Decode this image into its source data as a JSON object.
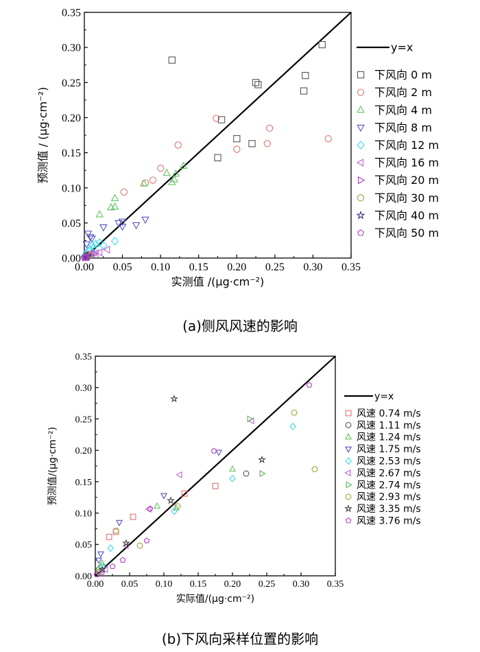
{
  "chart_data": [
    {
      "type": "scatter",
      "caption": "(a)侧风风速的影响",
      "xlabel": "实测值 /(μg·cm⁻²)",
      "ylabel": "预测值 / (μg·cm⁻²)",
      "xlim": [
        0,
        0.35
      ],
      "ylim": [
        0,
        0.35
      ],
      "xticks": [
        "0.00",
        "0.05",
        "0.10",
        "0.15",
        "0.20",
        "0.25",
        "0.30",
        "0.35"
      ],
      "yticks": [
        "0.00",
        "0.05",
        "0.10",
        "0.15",
        "0.20",
        "0.25",
        "0.30",
        "0.35"
      ],
      "reference_line": {
        "name": "y=x",
        "color": "#000000"
      },
      "legend_position": "right",
      "series": [
        {
          "name": "下风向 0 m",
          "marker": "square",
          "color": "#555555",
          "points": [
            [
              0.115,
              0.282
            ],
            [
              0.225,
              0.25
            ],
            [
              0.228,
              0.247
            ],
            [
              0.312,
              0.304
            ],
            [
              0.29,
              0.26
            ],
            [
              0.288,
              0.238
            ],
            [
              0.18,
              0.197
            ],
            [
              0.2,
              0.17
            ],
            [
              0.22,
              0.163
            ],
            [
              0.175,
              0.143
            ]
          ]
        },
        {
          "name": "下风向 2 m",
          "marker": "circle",
          "color": "#e07070",
          "points": [
            [
              0.173,
              0.199
            ],
            [
              0.243,
              0.185
            ],
            [
              0.32,
              0.17
            ],
            [
              0.24,
              0.163
            ],
            [
              0.2,
              0.155
            ],
            [
              0.123,
              0.161
            ],
            [
              0.1,
              0.128
            ],
            [
              0.09,
              0.111
            ],
            [
              0.08,
              0.107
            ],
            [
              0.052,
              0.094
            ]
          ]
        },
        {
          "name": "下风向 4 m",
          "marker": "triangle-up",
          "color": "#60c060",
          "points": [
            [
              0.13,
              0.131
            ],
            [
              0.118,
              0.112
            ],
            [
              0.12,
              0.12
            ],
            [
              0.108,
              0.121
            ],
            [
              0.115,
              0.108
            ],
            [
              0.078,
              0.106
            ],
            [
              0.04,
              0.085
            ],
            [
              0.035,
              0.072
            ],
            [
              0.04,
              0.073
            ],
            [
              0.02,
              0.062
            ]
          ]
        },
        {
          "name": "下风向 8 m",
          "marker": "triangle-down",
          "color": "#5050c0",
          "points": [
            [
              0.08,
              0.055
            ],
            [
              0.068,
              0.047
            ],
            [
              0.05,
              0.045
            ],
            [
              0.045,
              0.05
            ],
            [
              0.05,
              0.052
            ],
            [
              0.025,
              0.044
            ],
            [
              0.005,
              0.035
            ],
            [
              0.008,
              0.03
            ],
            [
              0.003,
              0.02
            ],
            [
              0.01,
              0.028
            ]
          ]
        },
        {
          "name": "下风向 12 m",
          "marker": "diamond",
          "color": "#40d8e8",
          "points": [
            [
              0.04,
              0.024
            ],
            [
              0.02,
              0.022
            ],
            [
              0.015,
              0.02
            ],
            [
              0.012,
              0.015
            ],
            [
              0.008,
              0.012
            ],
            [
              0.005,
              0.01
            ],
            [
              0.003,
              0.008
            ],
            [
              0.002,
              0.005
            ],
            [
              0.025,
              0.018
            ],
            [
              0.01,
              0.018
            ]
          ]
        },
        {
          "name": "下风向 16 m",
          "marker": "triangle-left",
          "color": "#c060d0",
          "points": [
            [
              0.03,
              0.012
            ],
            [
              0.02,
              0.008
            ],
            [
              0.015,
              0.007
            ],
            [
              0.01,
              0.006
            ],
            [
              0.005,
              0.004
            ],
            [
              0.003,
              0.003
            ]
          ]
        },
        {
          "name": "下风向 20 m",
          "marker": "triangle-right",
          "color": "#a040c0",
          "points": [
            [
              0.012,
              0.006
            ],
            [
              0.008,
              0.005
            ],
            [
              0.004,
              0.003
            ],
            [
              0.002,
              0.002
            ],
            [
              0.006,
              0.004
            ]
          ]
        },
        {
          "name": "下风向 30 m",
          "marker": "circle",
          "color": "#a0a040",
          "points": [
            [
              0.006,
              0.004
            ],
            [
              0.003,
              0.003
            ],
            [
              0.004,
              0.002
            ],
            [
              0.002,
              0.001
            ]
          ]
        },
        {
          "name": "下风向 40 m",
          "marker": "star",
          "color": "#303080",
          "points": [
            [
              0.004,
              0.003
            ],
            [
              0.002,
              0.002
            ],
            [
              0.001,
              0.001
            ],
            [
              0.003,
              0.001
            ]
          ]
        },
        {
          "name": "下风向 50 m",
          "marker": "pentagon",
          "color": "#b040c0",
          "points": [
            [
              0.003,
              0.002
            ],
            [
              0.001,
              0.001
            ],
            [
              0.002,
              0.001
            ],
            [
              0.0,
              0.0
            ]
          ]
        }
      ]
    },
    {
      "type": "scatter",
      "caption": "(b)下风向采样位置的影响",
      "xlabel": "实际值/(μg·cm⁻²)",
      "ylabel": "预测值/(μg·cm⁻²)",
      "xlim": [
        0,
        0.35
      ],
      "ylim": [
        0,
        0.35
      ],
      "xticks": [
        "0.00",
        "0.05",
        "0.10",
        "0.15",
        "0.20",
        "0.25",
        "0.30",
        "0.35"
      ],
      "yticks": [
        "0.00",
        "0.05",
        "0.10",
        "0.15",
        "0.20",
        "0.25",
        "0.30",
        "0.35"
      ],
      "reference_line": {
        "name": "y=x",
        "color": "#000000"
      },
      "legend_position": "right",
      "series": [
        {
          "name": "风速 0.74 m/s",
          "marker": "square",
          "color": "#e07070",
          "points": [
            [
              0.02,
              0.062
            ],
            [
              0.055,
              0.094
            ],
            [
              0.13,
              0.131
            ],
            [
              0.175,
              0.143
            ],
            [
              0.03,
              0.07
            ]
          ]
        },
        {
          "name": "风速 1.11 m/s",
          "marker": "circle",
          "color": "#555555",
          "points": [
            [
              0.22,
              0.163
            ],
            [
              0.005,
              0.01
            ],
            [
              0.01,
              0.015
            ]
          ]
        },
        {
          "name": "风速 1.24 m/s",
          "marker": "triangle-up",
          "color": "#60c060",
          "points": [
            [
              0.2,
              0.17
            ],
            [
              0.09,
              0.111
            ],
            [
              0.118,
              0.108
            ],
            [
              0.01,
              0.02
            ],
            [
              0.005,
              0.012
            ]
          ]
        },
        {
          "name": "风速 1.75 m/s",
          "marker": "triangle-down",
          "color": "#5050c0",
          "points": [
            [
              0.18,
              0.197
            ],
            [
              0.1,
              0.128
            ],
            [
              0.035,
              0.085
            ],
            [
              0.008,
              0.035
            ],
            [
              0.005,
              0.025
            ]
          ]
        },
        {
          "name": "风速 2.53 m/s",
          "marker": "diamond",
          "color": "#40d8e8",
          "points": [
            [
              0.288,
              0.238
            ],
            [
              0.2,
              0.155
            ],
            [
              0.115,
              0.103
            ],
            [
              0.022,
              0.044
            ],
            [
              0.01,
              0.015
            ]
          ]
        },
        {
          "name": "风速 2.67 m/s",
          "marker": "triangle-left",
          "color": "#c060d0",
          "points": [
            [
              0.228,
              0.247
            ],
            [
              0.123,
              0.161
            ],
            [
              0.078,
              0.106
            ],
            [
              0.045,
              0.048
            ],
            [
              0.015,
              0.01
            ]
          ]
        },
        {
          "name": "风速 2.74 m/s",
          "marker": "triangle-right",
          "color": "#60b060",
          "points": [
            [
              0.225,
              0.25
            ],
            [
              0.243,
              0.163
            ],
            [
              0.01,
              0.008
            ]
          ]
        },
        {
          "name": "风速 2.93 m/s",
          "marker": "circle",
          "color": "#a0a040",
          "points": [
            [
              0.29,
              0.26
            ],
            [
              0.32,
              0.17
            ],
            [
              0.12,
              0.111
            ],
            [
              0.065,
              0.048
            ],
            [
              0.03,
              0.072
            ],
            [
              0.005,
              0.006
            ]
          ]
        },
        {
          "name": "风速 3.35 m/s",
          "marker": "star",
          "color": "#404040",
          "points": [
            [
              0.115,
              0.282
            ],
            [
              0.243,
              0.185
            ],
            [
              0.11,
              0.12
            ],
            [
              0.045,
              0.052
            ],
            [
              0.01,
              0.01
            ]
          ]
        },
        {
          "name": "风速 3.76 m/s",
          "marker": "pentagon",
          "color": "#b040c0",
          "points": [
            [
              0.312,
              0.304
            ],
            [
              0.173,
              0.199
            ],
            [
              0.08,
              0.107
            ],
            [
              0.075,
              0.056
            ],
            [
              0.04,
              0.025
            ],
            [
              0.025,
              0.015
            ],
            [
              0.01,
              0.006
            ],
            [
              0.002,
              0.002
            ]
          ]
        }
      ]
    }
  ]
}
